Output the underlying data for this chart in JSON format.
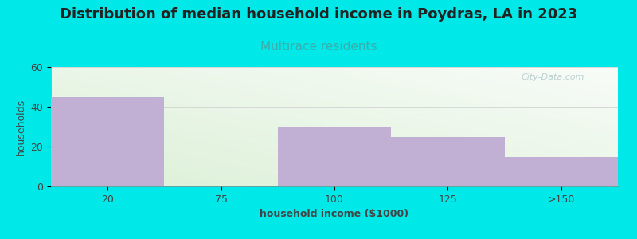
{
  "title": "Distribution of median household income in Poydras, LA in 2023",
  "subtitle": "Multirace residents",
  "xlabel": "household income ($1000)",
  "ylabel": "households",
  "categories": [
    "20",
    "75",
    "100",
    "125",
    ">150"
  ],
  "values": [
    45,
    0,
    30,
    25,
    15
  ],
  "bar_color": "#c2afd4",
  "ylim": [
    0,
    60
  ],
  "yticks": [
    0,
    20,
    40,
    60
  ],
  "background_color": "#00e8e8",
  "gradient_green": [
    220,
    240,
    215
  ],
  "gradient_white": [
    248,
    252,
    248
  ],
  "title_fontsize": 13,
  "title_color": "#222222",
  "subtitle_fontsize": 11,
  "subtitle_color": "#3aadad",
  "axis_label_fontsize": 9,
  "tick_fontsize": 9,
  "watermark": "City-Data.com",
  "watermark_color": "#b0c8cc",
  "grid_color": "#cccccc"
}
